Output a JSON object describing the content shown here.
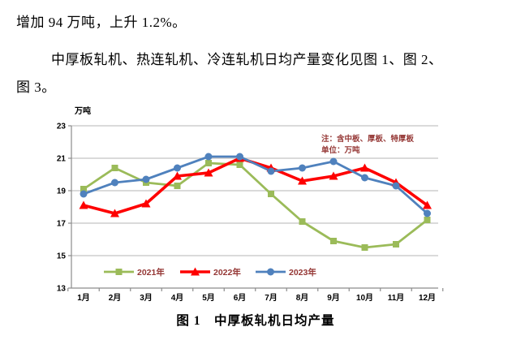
{
  "document": {
    "line1": "增加 94 万吨，上升 1.2%。",
    "line2": "中厚板轧机、热连轧机、冷连轧机日均产量变化见图 1、图 2、",
    "line3": "图 3。",
    "figure_caption": "图 1　中厚板轧机日均产量"
  },
  "chart_data": {
    "type": "line",
    "title": "中厚板轧机日均产量",
    "axis_title": "万吨",
    "note_line1": "注：含中板、厚板、特厚板",
    "note_line2": "单位：万吨",
    "categories": [
      "1月",
      "2月",
      "3月",
      "4月",
      "5月",
      "6月",
      "7月",
      "8月",
      "9月",
      "10月",
      "11月",
      "12月"
    ],
    "series": [
      {
        "name": "2021年",
        "color": "#9BBB59",
        "marker": "square",
        "values": [
          19.1,
          20.4,
          19.5,
          19.3,
          20.7,
          20.6,
          18.8,
          17.1,
          15.9,
          15.5,
          15.7,
          17.2
        ]
      },
      {
        "name": "2022年",
        "color": "#FE0000",
        "marker": "triangle",
        "values": [
          18.1,
          17.6,
          18.2,
          19.9,
          20.1,
          21.0,
          20.4,
          19.6,
          19.9,
          20.4,
          19.5,
          18.1
        ]
      },
      {
        "name": "2023年",
        "color": "#4F81BD",
        "marker": "circle",
        "values": [
          18.8,
          19.5,
          19.7,
          20.4,
          21.1,
          21.1,
          20.2,
          20.4,
          20.8,
          19.8,
          19.3,
          17.6
        ]
      }
    ],
    "ylim": [
      13,
      23
    ],
    "yticks": [
      23,
      21,
      19,
      17,
      15,
      13
    ],
    "grid": true,
    "legend_position": "bottom-inside",
    "colors": {
      "grid": "#C3C3C3",
      "axis": "#8C8C8C",
      "note_text": "#953735",
      "legend_text": "#953735",
      "tick_text": "#000000"
    }
  }
}
